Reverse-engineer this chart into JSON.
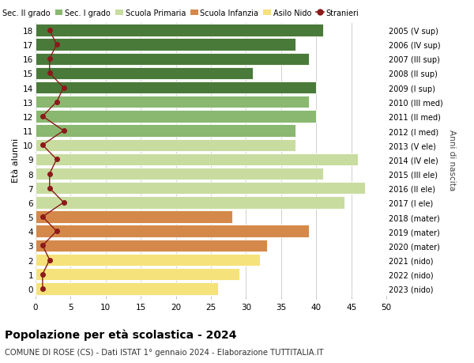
{
  "ages": [
    0,
    1,
    2,
    3,
    4,
    5,
    6,
    7,
    8,
    9,
    10,
    11,
    12,
    13,
    14,
    15,
    16,
    17,
    18
  ],
  "anni_nascita": [
    "2023 (nido)",
    "2022 (nido)",
    "2021 (nido)",
    "2020 (mater)",
    "2019 (mater)",
    "2018 (mater)",
    "2017 (I ele)",
    "2016 (II ele)",
    "2015 (III ele)",
    "2014 (IV ele)",
    "2013 (V ele)",
    "2012 (I med)",
    "2011 (II med)",
    "2010 (III med)",
    "2009 (I sup)",
    "2008 (II sup)",
    "2007 (III sup)",
    "2006 (IV sup)",
    "2005 (V sup)"
  ],
  "bar_values": [
    26,
    29,
    32,
    33,
    39,
    28,
    44,
    47,
    41,
    46,
    37,
    37,
    40,
    39,
    40,
    31,
    39,
    37,
    41
  ],
  "bar_colors": [
    "#f5e27a",
    "#f5e27a",
    "#f5e27a",
    "#d4894a",
    "#d4894a",
    "#d4894a",
    "#c8dca0",
    "#c8dca0",
    "#c8dca0",
    "#c8dca0",
    "#c8dca0",
    "#8ab870",
    "#8ab870",
    "#8ab870",
    "#4a7a3a",
    "#4a7a3a",
    "#4a7a3a",
    "#4a7a3a",
    "#4a7a3a"
  ],
  "stranieri_values": [
    1,
    1,
    2,
    1,
    3,
    1,
    4,
    2,
    2,
    3,
    1,
    4,
    1,
    3,
    4,
    2,
    2,
    3,
    2
  ],
  "legend_labels": [
    "Sec. II grado",
    "Sec. I grado",
    "Scuola Primaria",
    "Scuola Infanzia",
    "Asilo Nido",
    "Stranieri"
  ],
  "legend_colors": [
    "#4a7a3a",
    "#8ab870",
    "#c8dca0",
    "#d4894a",
    "#f5e27a",
    "#8b1a1a"
  ],
  "title": "Popolazione per età scolastica - 2024",
  "subtitle": "COMUNE DI ROSE (CS) - Dati ISTAT 1° gennaio 2024 - Elaborazione TUTTITALIA.IT",
  "ylabel": "Età alunni",
  "ylabel_right": "Anni di nascita",
  "xlim": [
    0,
    50
  ],
  "xticks": [
    0,
    5,
    10,
    15,
    20,
    25,
    30,
    35,
    40,
    45,
    50
  ],
  "background_color": "#ffffff",
  "grid_color": "#d0d0d0",
  "bar_edge_color": "#ffffff",
  "bar_height": 0.85
}
